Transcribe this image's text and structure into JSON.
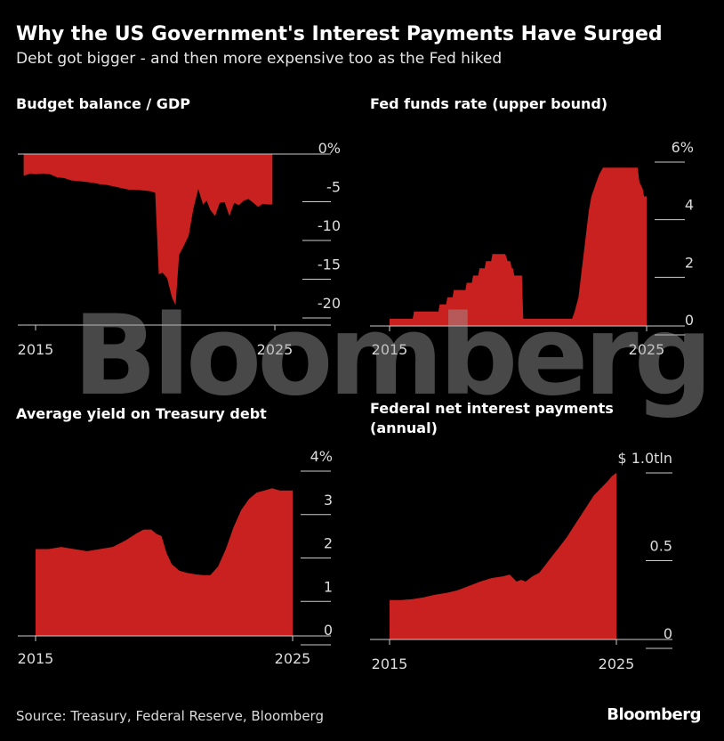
{
  "title": "Why the US Government's Interest Payments Have Surged",
  "subtitle": "Debt got bigger - and then more expensive too as the Fed hiked",
  "source": "Source: Treasury, Federal Reserve, Bloomberg",
  "logo": "Bloomberg",
  "watermark": "Bloomberg",
  "colors": {
    "fill": "#c8211f",
    "background": "#000000",
    "axis": "#cccccc"
  },
  "chart_data": [
    {
      "type": "area",
      "title": "Budget balance / GDP",
      "ylim": [
        -20,
        0
      ],
      "y_ticks": [
        0,
        -5,
        -10,
        -15,
        -20
      ],
      "y_tick_labels": [
        "0%",
        "-5",
        "-10",
        "-15",
        "-20"
      ],
      "x_tick_labels": [
        "2015",
        "2025"
      ],
      "x": [
        2014.5,
        2014.8,
        2015.0,
        2015.3,
        2015.6,
        2015.9,
        2016.2,
        2016.5,
        2016.8,
        2017.1,
        2017.4,
        2017.7,
        2018.0,
        2018.3,
        2018.6,
        2018.9,
        2019.2,
        2019.5,
        2019.8,
        2020.0,
        2020.15,
        2020.3,
        2020.5,
        2020.7,
        2020.85,
        2021.0,
        2021.2,
        2021.4,
        2021.6,
        2021.8,
        2022.0,
        2022.15,
        2022.3,
        2022.5,
        2022.7,
        2022.9,
        2023.1,
        2023.3,
        2023.5,
        2023.7,
        2023.9,
        2024.1,
        2024.3,
        2024.5,
        2024.7,
        2024.9
      ],
      "values": [
        -2.8,
        -2.5,
        -2.6,
        -2.5,
        -2.6,
        -3.0,
        -3.1,
        -3.4,
        -3.5,
        -3.6,
        -3.7,
        -3.9,
        -4.0,
        -4.2,
        -4.4,
        -4.6,
        -4.6,
        -4.7,
        -4.8,
        -5.0,
        -15.5,
        -15.3,
        -16.0,
        -18.5,
        -19.5,
        -13.0,
        -11.8,
        -10.5,
        -7.0,
        -4.5,
        -6.5,
        -6.0,
        -7.2,
        -8.0,
        -6.3,
        -6.2,
        -8.0,
        -6.3,
        -6.6,
        -6.0,
        -5.8,
        -6.3,
        -6.8,
        -6.4,
        -6.5,
        -6.5
      ]
    },
    {
      "type": "area",
      "title": "Fed funds rate (upper bound)",
      "ylim": [
        0,
        6
      ],
      "y_ticks": [
        6,
        4,
        2,
        0
      ],
      "y_tick_labels": [
        "6%",
        "4",
        "2",
        "0"
      ],
      "x_tick_labels": [
        "2015",
        "2025"
      ],
      "x": [
        2015.0,
        2015.9,
        2015.95,
        2016.9,
        2016.95,
        2017.2,
        2017.25,
        2017.45,
        2017.5,
        2017.95,
        2018.0,
        2018.2,
        2018.25,
        2018.45,
        2018.5,
        2018.7,
        2018.75,
        2018.95,
        2019.0,
        2019.5,
        2019.6,
        2019.7,
        2019.75,
        2019.8,
        2019.85,
        2020.15,
        2020.2,
        2022.1,
        2022.2,
        2022.35,
        2022.45,
        2022.55,
        2022.65,
        2022.75,
        2022.85,
        2022.95,
        2023.05,
        2023.15,
        2023.3,
        2023.55,
        2023.6,
        2024.65,
        2024.72,
        2024.85,
        2024.9,
        2025.0
      ],
      "values": [
        0.25,
        0.25,
        0.5,
        0.5,
        0.75,
        0.75,
        1.0,
        1.0,
        1.25,
        1.25,
        1.5,
        1.5,
        1.75,
        1.75,
        2.0,
        2.0,
        2.25,
        2.25,
        2.5,
        2.5,
        2.25,
        2.25,
        2.0,
        2.0,
        1.75,
        1.75,
        0.25,
        0.25,
        0.5,
        1.0,
        1.75,
        2.5,
        3.25,
        4.0,
        4.5,
        4.75,
        5.0,
        5.25,
        5.5,
        5.5,
        5.5,
        5.5,
        5.0,
        4.75,
        4.5,
        4.5
      ]
    },
    {
      "type": "area",
      "title": "Average yield on Treasury debt",
      "ylim": [
        0,
        4
      ],
      "y_ticks": [
        4,
        3,
        2,
        1,
        0
      ],
      "y_tick_labels": [
        "4%",
        "3",
        "2",
        "1",
        "0"
      ],
      "x_tick_labels": [
        "2015",
        "2025"
      ],
      "x": [
        2015.0,
        2015.5,
        2016.0,
        2016.5,
        2017.0,
        2017.5,
        2018.0,
        2018.5,
        2018.9,
        2019.2,
        2019.5,
        2019.7,
        2019.9,
        2020.1,
        2020.3,
        2020.6,
        2020.9,
        2021.2,
        2021.5,
        2021.8,
        2022.1,
        2022.4,
        2022.7,
        2023.0,
        2023.3,
        2023.6,
        2023.9,
        2024.2,
        2024.5,
        2024.8,
        2025.0
      ],
      "values": [
        2.0,
        2.0,
        2.05,
        2.0,
        1.95,
        2.0,
        2.05,
        2.2,
        2.35,
        2.45,
        2.45,
        2.35,
        2.3,
        1.9,
        1.65,
        1.5,
        1.45,
        1.42,
        1.4,
        1.4,
        1.6,
        2.0,
        2.5,
        2.9,
        3.15,
        3.3,
        3.35,
        3.4,
        3.35,
        3.35,
        3.35
      ]
    },
    {
      "type": "area",
      "title": "Federal net interest payments (annual)",
      "ylim": [
        0,
        1.0
      ],
      "y_ticks": [
        1.0,
        0.5,
        0
      ],
      "y_tick_labels": [
        "$ 1.0tln",
        "0.5",
        "0"
      ],
      "x_tick_labels": [
        "2015",
        "2025"
      ],
      "x": [
        2015.0,
        2015.5,
        2016.0,
        2016.5,
        2017.0,
        2017.5,
        2018.0,
        2018.5,
        2019.0,
        2019.5,
        2020.0,
        2020.3,
        2020.6,
        2020.8,
        2021.0,
        2021.3,
        2021.6,
        2021.9,
        2022.2,
        2022.5,
        2022.8,
        2023.1,
        2023.4,
        2023.7,
        2024.0,
        2024.3,
        2024.6,
        2024.8,
        2025.0
      ],
      "values": [
        0.225,
        0.225,
        0.23,
        0.24,
        0.255,
        0.265,
        0.28,
        0.305,
        0.33,
        0.35,
        0.36,
        0.37,
        0.33,
        0.34,
        0.33,
        0.36,
        0.38,
        0.43,
        0.48,
        0.53,
        0.58,
        0.64,
        0.7,
        0.76,
        0.82,
        0.86,
        0.9,
        0.93,
        0.95
      ]
    }
  ]
}
